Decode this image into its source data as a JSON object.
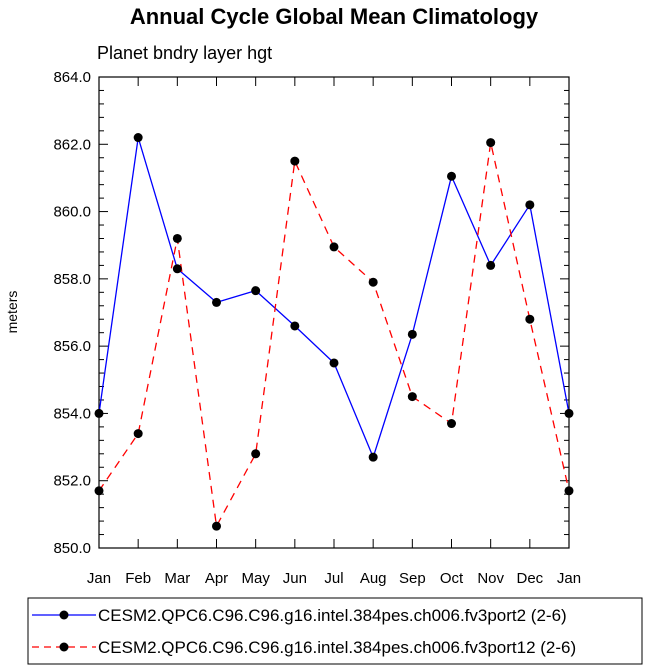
{
  "chart_data": {
    "type": "line",
    "title": "Annual Cycle Global Mean Climatology",
    "subtitle": "Planet bndry layer hgt",
    "xlabel": "",
    "ylabel": "meters",
    "categories": [
      "Jan",
      "Feb",
      "Mar",
      "Apr",
      "May",
      "Jun",
      "Jul",
      "Aug",
      "Sep",
      "Oct",
      "Nov",
      "Dec",
      "Jan"
    ],
    "ylim": [
      850.0,
      864.0
    ],
    "yticks": [
      "850.0",
      "852.0",
      "854.0",
      "856.0",
      "858.0",
      "860.0",
      "862.0",
      "864.0"
    ],
    "grid": false,
    "legend_position": "bottom",
    "series": [
      {
        "name": "CESM2.QPC6.C96.C96.g16.intel.384pes.ch006.fv3port2 (2-6)",
        "color": "#0000ff",
        "dash": "solid",
        "values": [
          854.0,
          862.2,
          858.3,
          857.3,
          857.65,
          856.6,
          855.5,
          852.7,
          856.35,
          861.05,
          858.4,
          860.2,
          854.0
        ]
      },
      {
        "name": "CESM2.QPC6.C96.C96.g16.intel.384pes.ch006.fv3port12 (2-6)",
        "color": "#ff0000",
        "dash": "dashed",
        "values": [
          851.7,
          853.4,
          859.2,
          850.65,
          852.8,
          861.5,
          858.95,
          857.9,
          854.5,
          853.7,
          862.05,
          856.8,
          851.7
        ]
      }
    ]
  }
}
